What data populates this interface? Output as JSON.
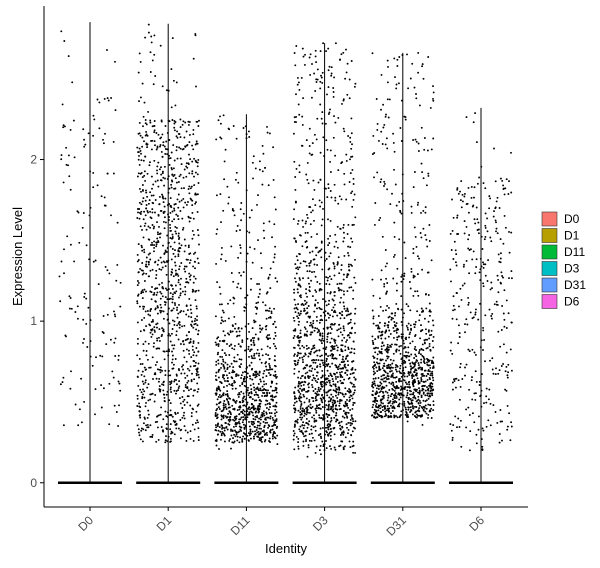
{
  "chart_data": {
    "type": "violin-jitter",
    "xlabel": "Identity",
    "ylabel": "Expression Level",
    "categories": [
      "D0",
      "D1",
      "D11",
      "D3",
      "D31",
      "D6"
    ],
    "ylim": [
      -0.15,
      2.95
    ],
    "yticks": [
      0,
      1,
      2
    ],
    "legend": {
      "position": "right",
      "entries": [
        {
          "label": "D0",
          "color": "#F8766D"
        },
        {
          "label": "D1",
          "color": "#B79F00"
        },
        {
          "label": "D11",
          "color": "#00BA38"
        },
        {
          "label": "D3",
          "color": "#00BFC4"
        },
        {
          "label": "D31",
          "color": "#619CFF"
        },
        {
          "label": "D6",
          "color": "#F564E3"
        }
      ]
    },
    "grid": false,
    "series": [
      {
        "group": "D0",
        "max": 2.85,
        "points_above_zero": 150,
        "dense_range": [
          0.3,
          2.4
        ],
        "zero_cells": "many"
      },
      {
        "group": "D1",
        "max": 2.84,
        "points_above_zero": 1100,
        "dense_range": [
          0.25,
          2.25
        ],
        "zero_cells": "many"
      },
      {
        "group": "D11",
        "max": 2.28,
        "points_above_zero": 950,
        "dense_range": [
          0.2,
          0.9
        ],
        "zero_cells": "many"
      },
      {
        "group": "D3",
        "max": 2.72,
        "points_above_zero": 1300,
        "dense_range": [
          0.15,
          1.7
        ],
        "zero_cells": "many"
      },
      {
        "group": "D31",
        "max": 2.66,
        "points_above_zero": 1050,
        "dense_range": [
          0.35,
          1.0
        ],
        "zero_cells": "many"
      },
      {
        "group": "D6",
        "max": 2.32,
        "points_above_zero": 330,
        "dense_range": [
          0.2,
          1.9
        ],
        "zero_cells": "many"
      }
    ]
  }
}
